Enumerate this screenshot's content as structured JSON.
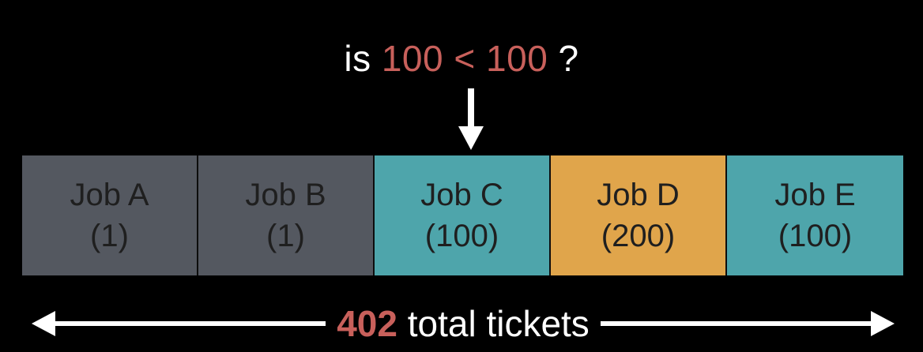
{
  "question": {
    "prefix": "is ",
    "lhs": "100",
    "op": " < ",
    "rhs": "100",
    "suffix": " ?"
  },
  "jobs": [
    {
      "name": "Job A",
      "tickets": "(1)",
      "color": "#545860"
    },
    {
      "name": "Job B",
      "tickets": "(1)",
      "color": "#545860"
    },
    {
      "name": "Job C",
      "tickets": "(100)",
      "color": "#4ea5ab"
    },
    {
      "name": "Job D",
      "tickets": "(200)",
      "color": "#e0a54b"
    },
    {
      "name": "Job E",
      "tickets": "(100)",
      "color": "#4ea5ab"
    }
  ],
  "totals": {
    "count": "402",
    "label": " total tickets"
  },
  "colors": {
    "highlight": "#c8605b",
    "background": "#000000",
    "text": "#ffffff"
  }
}
